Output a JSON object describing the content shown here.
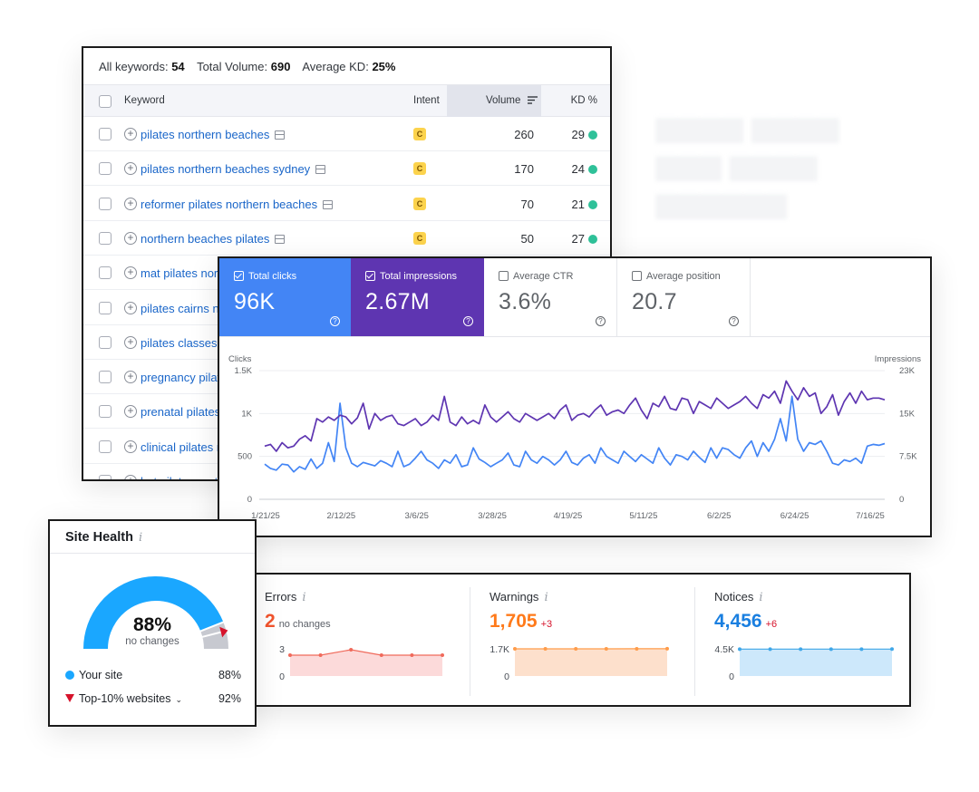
{
  "keywords_panel": {
    "summary": [
      {
        "label": "All keywords:",
        "value": "54"
      },
      {
        "label": "Total Volume:",
        "value": "690"
      },
      {
        "label": "Average KD:",
        "value": "25%"
      }
    ],
    "columns": {
      "keyword": "Keyword",
      "intent": "Intent",
      "volume": "Volume",
      "kd": "KD %"
    },
    "rows": [
      {
        "keyword": "pilates northern beaches",
        "intent": "C",
        "volume": "260",
        "kd": "29",
        "serp": true
      },
      {
        "keyword": "pilates northern beaches sydney",
        "intent": "C",
        "volume": "170",
        "kd": "24",
        "serp": true
      },
      {
        "keyword": "reformer pilates northern beaches",
        "intent": "C",
        "volume": "70",
        "kd": "21",
        "serp": true
      },
      {
        "keyword": "northern beaches pilates",
        "intent": "C",
        "volume": "50",
        "kd": "27",
        "serp": true
      },
      {
        "keyword": "mat pilates nort",
        "intent": "",
        "volume": "",
        "kd": "",
        "serp": false
      },
      {
        "keyword": "pilates cairns n",
        "intent": "",
        "volume": "",
        "kd": "",
        "serp": false
      },
      {
        "keyword": "pilates classes",
        "intent": "",
        "volume": "",
        "kd": "",
        "serp": false
      },
      {
        "keyword": "pregnancy pilat",
        "intent": "",
        "volume": "",
        "kd": "",
        "serp": false
      },
      {
        "keyword": "prenatal pilates",
        "intent": "",
        "volume": "",
        "kd": "",
        "serp": false
      },
      {
        "keyword": "clinical pilates n",
        "intent": "",
        "volume": "",
        "kd": "",
        "serp": false
      },
      {
        "keyword": "hot pilates nort",
        "intent": "",
        "volume": "",
        "kd": "",
        "serp": false
      }
    ]
  },
  "performance": {
    "metrics": [
      {
        "label": "Total clicks",
        "value": "96K",
        "checked": true
      },
      {
        "label": "Total impressions",
        "value": "2.67M",
        "checked": true
      },
      {
        "label": "Average CTR",
        "value": "3.6%",
        "checked": false
      },
      {
        "label": "Average position",
        "value": "20.7",
        "checked": false
      }
    ],
    "help_glyph": "?",
    "colors": {
      "clicks": "#4385f5",
      "impressions": "#5e35b1"
    }
  },
  "chart_data": {
    "type": "line",
    "left_axis_label": "Clicks",
    "right_axis_label": "Impressions",
    "left_ticks": [
      "0",
      "500",
      "1K",
      "1.5K"
    ],
    "left_ylim": [
      0,
      1500
    ],
    "right_ticks": [
      "0",
      "7.5K",
      "15K",
      "23K"
    ],
    "right_ylim": [
      0,
      23000
    ],
    "x_tick_labels": [
      "1/21/25",
      "2/12/25",
      "3/6/25",
      "3/28/25",
      "4/19/25",
      "5/11/25",
      "6/2/25",
      "6/24/25",
      "7/16/25"
    ],
    "series": [
      {
        "name": "Total clicks",
        "axis": "left",
        "values": [
          410,
          360,
          340,
          410,
          400,
          320,
          380,
          350,
          470,
          360,
          420,
          660,
          440,
          1120,
          600,
          420,
          380,
          430,
          410,
          390,
          450,
          420,
          380,
          560,
          380,
          410,
          480,
          560,
          460,
          420,
          360,
          460,
          420,
          520,
          380,
          400,
          600,
          470,
          430,
          380,
          420,
          460,
          540,
          400,
          380,
          560,
          460,
          420,
          500,
          460,
          400,
          460,
          560,
          430,
          400,
          480,
          520,
          420,
          600,
          500,
          460,
          420,
          560,
          500,
          440,
          520,
          470,
          420,
          600,
          480,
          400,
          520,
          500,
          460,
          560,
          490,
          430,
          600,
          480,
          600,
          580,
          520,
          480,
          600,
          680,
          500,
          660,
          560,
          700,
          940,
          680,
          1200,
          700,
          560,
          660,
          640,
          680,
          560,
          420,
          400,
          460,
          440,
          480,
          420,
          620,
          640,
          630,
          650
        ]
      },
      {
        "name": "Total impressions",
        "axis": "left",
        "values": [
          620,
          640,
          560,
          660,
          600,
          620,
          700,
          740,
          680,
          940,
          900,
          960,
          920,
          980,
          960,
          880,
          950,
          1120,
          820,
          1000,
          920,
          960,
          980,
          880,
          860,
          900,
          940,
          860,
          900,
          980,
          920,
          1200,
          900,
          860,
          960,
          880,
          920,
          880,
          1100,
          960,
          900,
          960,
          1020,
          940,
          900,
          1000,
          960,
          920,
          960,
          1000,
          940,
          1040,
          1100,
          920,
          980,
          1000,
          960,
          1040,
          1100,
          980,
          1020,
          1040,
          1000,
          1100,
          1180,
          1040,
          940,
          1120,
          1080,
          1200,
          1060,
          1040,
          1180,
          1160,
          1000,
          1140,
          1100,
          1060,
          1180,
          1120,
          1060,
          1100,
          1140,
          1200,
          1120,
          1060,
          1220,
          1180,
          1260,
          1120,
          1380,
          1260,
          1160,
          1300,
          1200,
          1240,
          1000,
          1080,
          1220,
          980,
          1140,
          1240,
          1120,
          1260,
          1160,
          1180,
          1180,
          1160
        ]
      }
    ]
  },
  "site_health": {
    "title": "Site Health",
    "info_glyph": "i",
    "percent": "88%",
    "percent_value": 88,
    "sub": "no changes",
    "rows": [
      {
        "label": "Your site",
        "value": "88%"
      },
      {
        "label": "Top-10% websites",
        "value": "92%"
      }
    ],
    "colors": {
      "your_site": "#1aa7ff",
      "top10": "#d6132b",
      "track": "#c7c9d0"
    }
  },
  "issues": [
    {
      "title": "Errors",
      "value": "2",
      "delta": "no changes",
      "color": "#f2542d",
      "delta_color": "#5c6068",
      "fill": "#fcdada",
      "line": "#f06a5b",
      "y_ticks": [
        "0",
        "3"
      ],
      "ylim": [
        0,
        3
      ],
      "points": [
        2.3,
        2.3,
        2.9,
        2.3,
        2.3,
        2.3
      ]
    },
    {
      "title": "Warnings",
      "value": "1,705",
      "delta": "+3",
      "color": "#ff7a1a",
      "delta_color": "#d6132b",
      "fill": "#fde0cc",
      "line": "#ff9c4a",
      "y_ticks": [
        "0",
        "1.7K"
      ],
      "ylim": [
        0,
        1700
      ],
      "points": [
        1702,
        1702,
        1702,
        1702,
        1703,
        1705
      ]
    },
    {
      "title": "Notices",
      "value": "4,456",
      "delta": "+6",
      "color": "#1a7fe0",
      "delta_color": "#d6132b",
      "fill": "#cde8fb",
      "line": "#3fa7e8",
      "y_ticks": [
        "0",
        "4.5K"
      ],
      "ylim": [
        0,
        4500
      ],
      "points": [
        4450,
        4450,
        4450,
        4450,
        4452,
        4456
      ]
    }
  ]
}
